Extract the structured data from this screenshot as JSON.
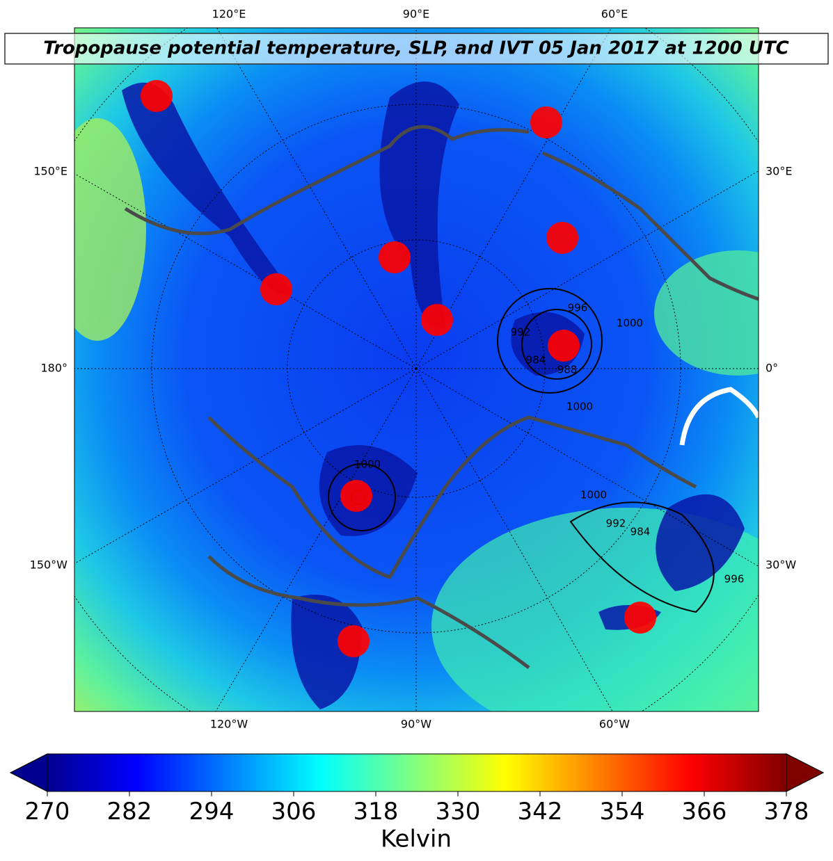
{
  "title": "Tropopause potential temperature, SLP, and IVT 05 Jan 2017 at 1200 UTC",
  "map": {
    "lon_labels_top": [
      "120°E",
      "90°E",
      "60°E"
    ],
    "lon_labels_bottom": [
      "120°W",
      "90°W",
      "60°W"
    ],
    "lon_labels_left": [
      "150°E",
      "180°",
      "150°W"
    ],
    "lon_labels_right": [
      "30°E",
      "0°",
      "30°W"
    ],
    "contour_labels": [
      1000,
      996,
      992,
      984,
      988,
      1000,
      1000,
      992,
      984,
      996,
      1000
    ]
  },
  "colorbar": {
    "range": [
      270,
      378
    ],
    "ticks": [
      270,
      282,
      294,
      306,
      318,
      330,
      342,
      354,
      366,
      378
    ],
    "label": "Kelvin"
  }
}
